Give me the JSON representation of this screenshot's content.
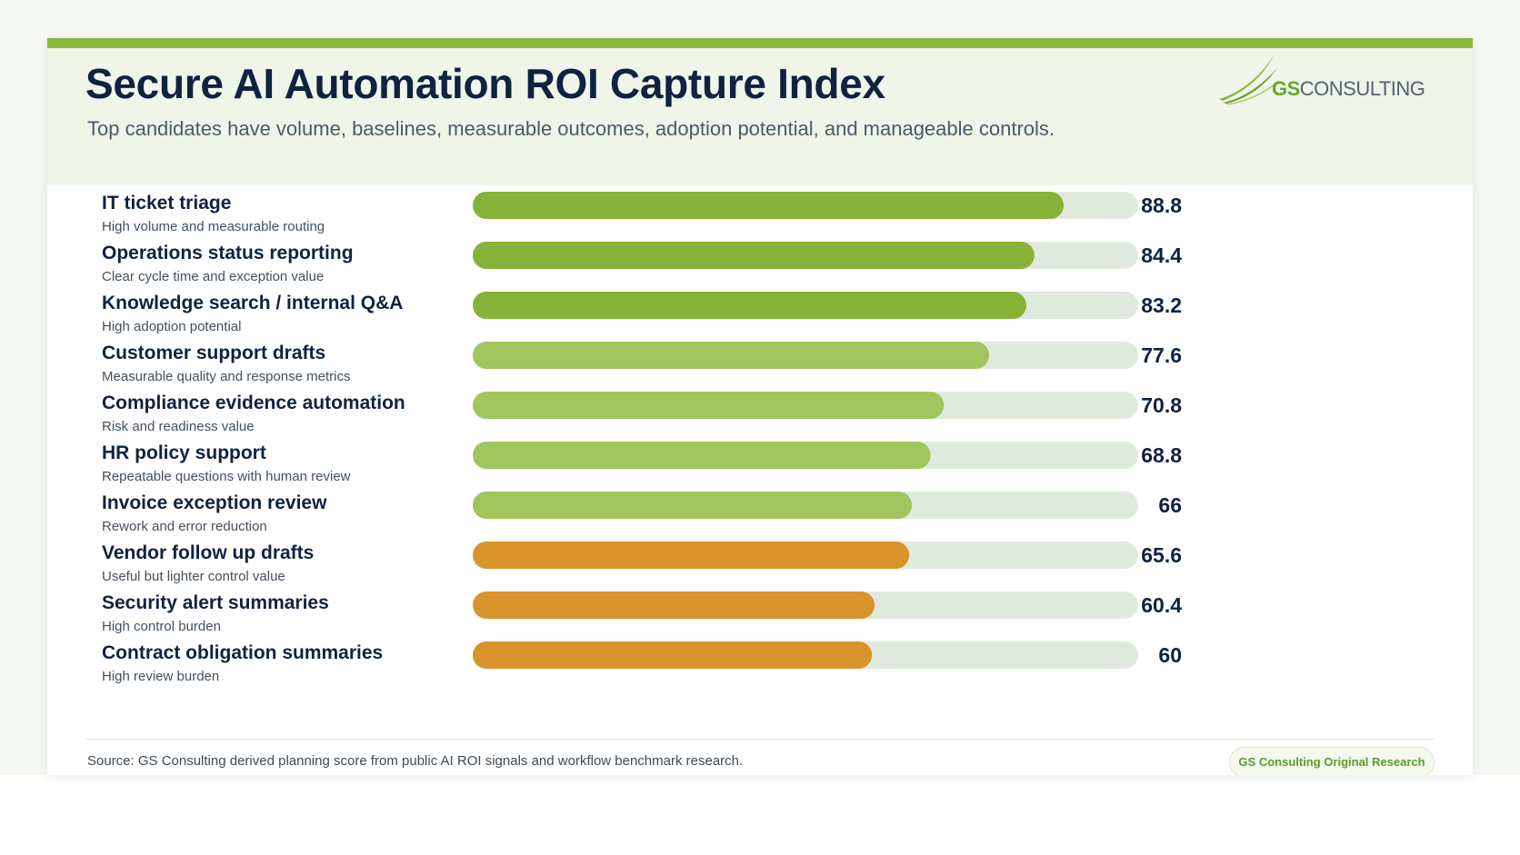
{
  "header": {
    "title": "Secure AI Automation ROI Capture Index",
    "subtitle": "Top candidates have volume, baselines, measurable outcomes, adoption potential, and manageable controls."
  },
  "logo": {
    "gs": "GS",
    "consulting": "CONSULTING",
    "icon": "swoosh-logo-icon"
  },
  "footer": {
    "source": "Source: GS Consulting derived planning score from public AI ROI signals and workflow benchmark research.",
    "badge": "GS Consulting Original Research"
  },
  "colors": {
    "accent": "#8ab83e",
    "title": "#0f2340",
    "track": "#e0e9dd",
    "tier_top": "#86b237",
    "tier_mid": "#a1c55d",
    "tier_low": "#d8942b"
  },
  "chart_data": {
    "type": "bar",
    "orientation": "horizontal",
    "xlim": [
      0,
      100
    ],
    "grid": false,
    "categories": [
      "IT ticket triage",
      "Operations status reporting",
      "Knowledge search / internal Q&A",
      "Customer support drafts",
      "Compliance evidence automation",
      "HR policy support",
      "Invoice exception review",
      "Vendor follow up drafts",
      "Security alert summaries",
      "Contract obligation summaries"
    ],
    "descriptions": [
      "High volume and measurable routing",
      "Clear cycle time and exception value",
      "High adoption potential",
      "Measurable quality and response metrics",
      "Risk and readiness value",
      "Repeatable questions with human review",
      "Rework and error reduction",
      "Useful but lighter control value",
      "High control burden",
      "High review burden"
    ],
    "values": [
      88.8,
      84.4,
      83.2,
      77.6,
      70.8,
      68.8,
      66,
      65.6,
      60.4,
      60
    ],
    "value_labels": [
      "88.8",
      "84.4",
      "83.2",
      "77.6",
      "70.8",
      "68.8",
      "66",
      "65.6",
      "60.4",
      "60"
    ],
    "tiers": [
      "top",
      "top",
      "top",
      "mid",
      "mid",
      "mid",
      "mid",
      "low",
      "low",
      "low"
    ]
  }
}
